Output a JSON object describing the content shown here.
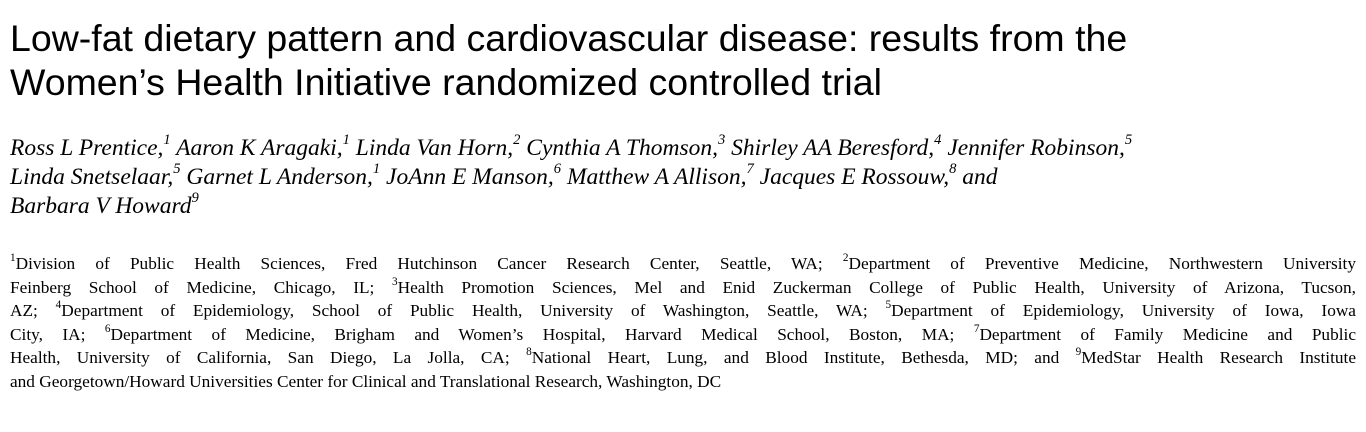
{
  "title": {
    "line1": "Low-fat dietary pattern and cardiovascular disease: results from the",
    "line2": "Women’s Health Initiative randomized controlled trial"
  },
  "authors": [
    {
      "name": "Ross L Prentice,",
      "sup": "1"
    },
    {
      "name": "Aaron K Aragaki,",
      "sup": "1"
    },
    {
      "name": "Linda Van Horn,",
      "sup": "2"
    },
    {
      "name": "Cynthia A Thomson,",
      "sup": "3"
    },
    {
      "name": "Shirley AA Beresford,",
      "sup": "4"
    },
    {
      "name": "Jennifer Robinson,",
      "sup": "5"
    },
    {
      "name": "Linda Snetselaar,",
      "sup": "5"
    },
    {
      "name": "Garnet L Anderson,",
      "sup": "1"
    },
    {
      "name": "JoAnn E Manson,",
      "sup": "6"
    },
    {
      "name": "Matthew A Allison,",
      "sup": "7"
    },
    {
      "name": "Jacques E Rossouw,",
      "sup": "8"
    },
    {
      "name": "and",
      "sup": ""
    },
    {
      "name": "Barbara V Howard",
      "sup": "9"
    }
  ],
  "affiliations": [
    {
      "sup": "1",
      "text": "Division of Public Health Sciences, Fred Hutchinson Cancer Research Center, Seattle, WA; "
    },
    {
      "sup": "2",
      "text": "Department of Preventive Medicine, Northwestern University Feinberg School of Medicine, Chicago, IL; "
    },
    {
      "sup": "3",
      "text": "Health Promotion Sciences, Mel and Enid Zuckerman College of Public Health, University of Arizona, Tucson, AZ; "
    },
    {
      "sup": "4",
      "text": "Department of Epidemiology, School of Public Health, University of Washington, Seattle, WA; "
    },
    {
      "sup": "5",
      "text": "Department of Epidemiology, University of Iowa, Iowa City, IA; "
    },
    {
      "sup": "6",
      "text": "Department of Medicine, Brigham and Women’s Hospital, Harvard Medical School, Boston, MA; "
    },
    {
      "sup": "7",
      "text": "Department of Family Medicine and Public Health, University of California, San Diego, La Jolla, CA; "
    },
    {
      "sup": "8",
      "text": "National Heart, Lung, and Blood Institute, Bethesda, MD; and "
    },
    {
      "sup": "9",
      "text": "MedStar Health Research Institute and Georgetown/Howard Universities Center for Clinical and Translational Research, Washington, DC"
    }
  ]
}
